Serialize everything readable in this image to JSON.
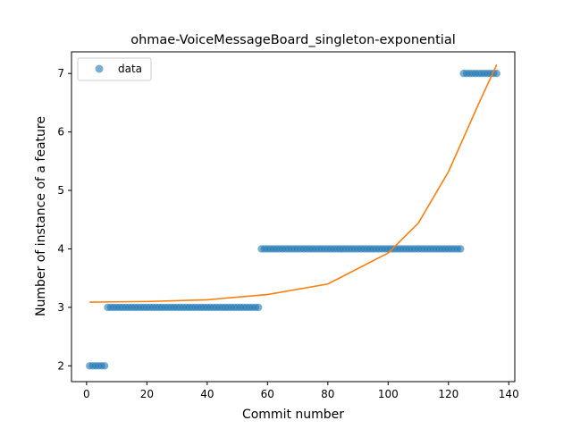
{
  "chart_data": {
    "type": "scatter",
    "title": "ohmae-VoiceMessageBoard_singleton-exponential",
    "xlabel": "Commit number",
    "ylabel": "Number of instance of a feature",
    "xlim": [
      -5,
      142
    ],
    "ylim": [
      1.73,
      7.37
    ],
    "xticks": [
      0,
      20,
      40,
      60,
      80,
      100,
      120,
      140
    ],
    "yticks": [
      2,
      3,
      4,
      5,
      6,
      7
    ],
    "grid": false,
    "legend": {
      "position": "top-left",
      "entries": [
        "data"
      ]
    },
    "colors": {
      "data": "#1f77b4",
      "fit": "#ff7f0e"
    },
    "series": [
      {
        "name": "data",
        "kind": "scatter",
        "segments": [
          {
            "x_from": 1,
            "x_to": 6,
            "y": 2
          },
          {
            "x_from": 7,
            "x_to": 57,
            "y": 3
          },
          {
            "x_from": 58,
            "x_to": 124,
            "y": 4
          },
          {
            "x_from": 125,
            "x_to": 136,
            "y": 7
          }
        ]
      },
      {
        "name": "",
        "kind": "line",
        "model": "exponential",
        "x_range": [
          1,
          136
        ],
        "points": [
          [
            1,
            3.09
          ],
          [
            20,
            3.1
          ],
          [
            40,
            3.13
          ],
          [
            60,
            3.22
          ],
          [
            80,
            3.4
          ],
          [
            100,
            3.93
          ],
          [
            110,
            4.44
          ],
          [
            120,
            5.32
          ],
          [
            130,
            6.48
          ],
          [
            136,
            7.15
          ]
        ]
      }
    ]
  }
}
